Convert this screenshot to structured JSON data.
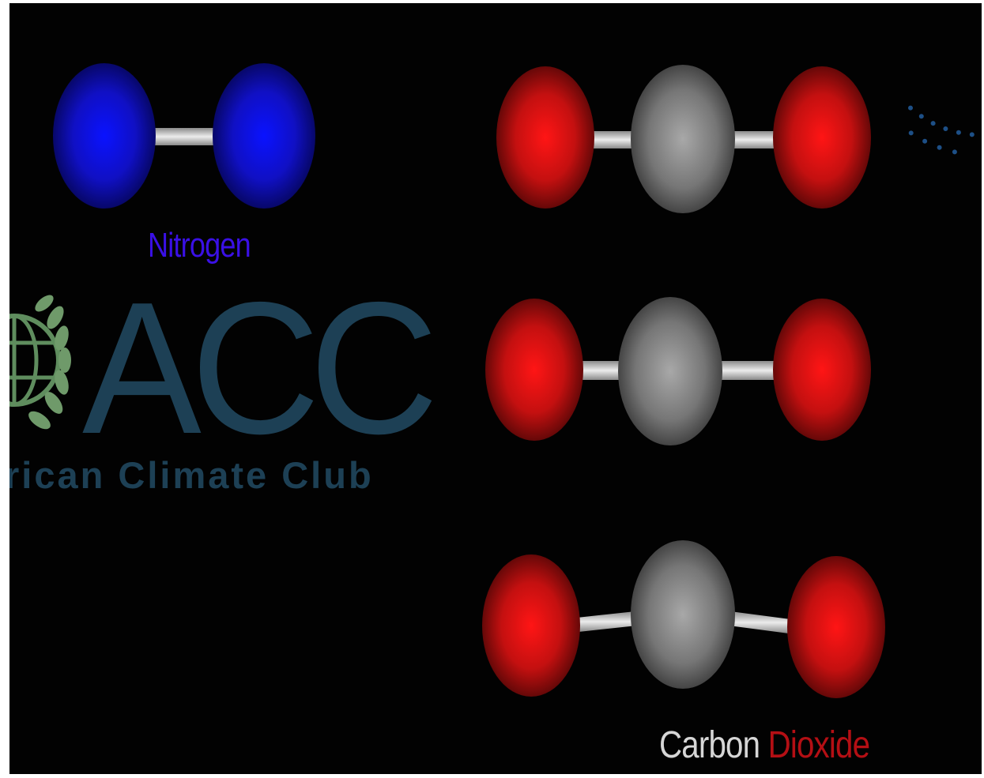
{
  "molecules": {
    "nitrogen_label": "Nitrogen",
    "carbon_label_word1": "Carbon",
    "carbon_label_word2": "Dioxide"
  },
  "logo": {
    "letters": "ACC",
    "tagline": "rican Climate Club"
  },
  "colors": {
    "background": "#020202",
    "nitrogen_atom": "#1010d8",
    "oxygen_atom": "#e01010",
    "carbon_atom": "#8c8c8c",
    "bond": "#cfcfcf",
    "logo_text": "#1d4055",
    "logo_wreath": "#6f9a6a",
    "dots": "#1d4f86"
  }
}
